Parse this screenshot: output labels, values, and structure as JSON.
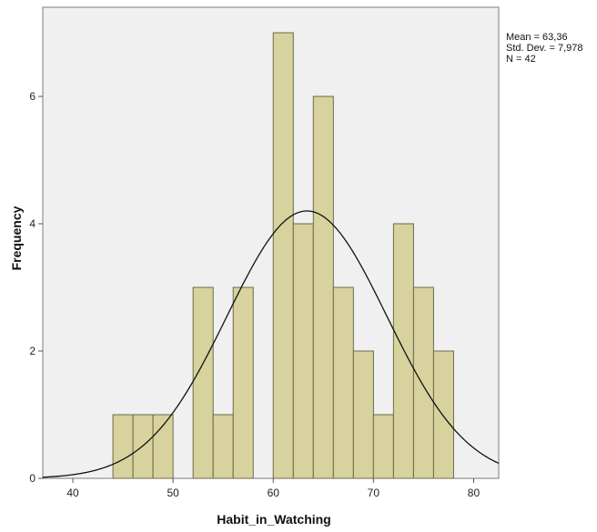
{
  "chart_data": {
    "type": "bar",
    "xlabel": "Habit_in_Watching",
    "ylabel": "Frequency",
    "xlim": [
      37,
      82.5
    ],
    "ylim": [
      0,
      7.4
    ],
    "xticks": [
      40,
      50,
      60,
      70,
      80
    ],
    "yticks": [
      0,
      2,
      4,
      6
    ],
    "bin_width": 2,
    "bins": [
      {
        "start": 44,
        "end": 46,
        "count": 1
      },
      {
        "start": 46,
        "end": 48,
        "count": 1
      },
      {
        "start": 48,
        "end": 50,
        "count": 1
      },
      {
        "start": 52,
        "end": 54,
        "count": 3
      },
      {
        "start": 54,
        "end": 56,
        "count": 1
      },
      {
        "start": 56,
        "end": 58,
        "count": 3
      },
      {
        "start": 60,
        "end": 62,
        "count": 7
      },
      {
        "start": 62,
        "end": 64,
        "count": 4
      },
      {
        "start": 64,
        "end": 66,
        "count": 6
      },
      {
        "start": 66,
        "end": 68,
        "count": 3
      },
      {
        "start": 68,
        "end": 70,
        "count": 2
      },
      {
        "start": 70,
        "end": 72,
        "count": 1
      },
      {
        "start": 72,
        "end": 74,
        "count": 4
      },
      {
        "start": 74,
        "end": 76,
        "count": 3
      },
      {
        "start": 76,
        "end": 78,
        "count": 2
      }
    ],
    "normal_curve": {
      "mean": 63.36,
      "std": 7.978,
      "n": 42
    },
    "stats": [
      "Mean = 63,36",
      "Std. Dev. = 7,978",
      "N = 42"
    ],
    "grid": false,
    "colors": {
      "bar_fill": "#d8d29f",
      "bar_stroke": "#6b6b45",
      "plot_background": "#f0f0f0",
      "curve": "#111111"
    }
  }
}
